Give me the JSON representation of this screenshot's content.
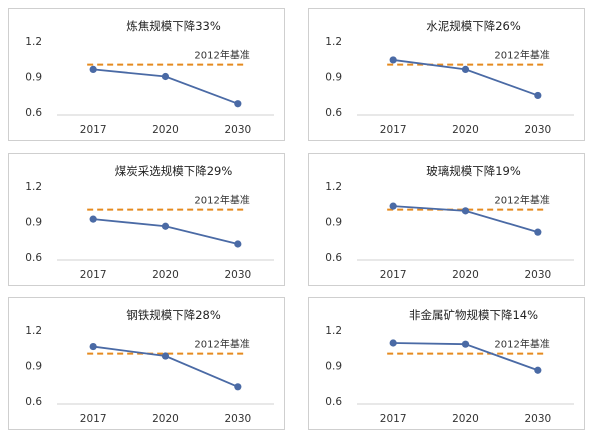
{
  "colors": {
    "series": "#4a6aa5",
    "baseline": "#e58a1f",
    "axis": "#d0d0d0",
    "border": "#cfcfcf"
  },
  "chart_data": [
    {
      "type": "line",
      "title": "炼焦规模下降33%",
      "categories": [
        "2017",
        "2020",
        "2030"
      ],
      "values": [
        0.96,
        0.9,
        0.67
      ],
      "baseline": {
        "label": "2012年基准",
        "value": 1.0
      },
      "yticks": [
        "0.6",
        "0.9",
        "1.2"
      ],
      "ylim": [
        0.6,
        1.2
      ],
      "xlabel": "",
      "ylabel": "",
      "grid": false
    },
    {
      "type": "line",
      "title": "水泥规模下降26%",
      "categories": [
        "2017",
        "2020",
        "2030"
      ],
      "values": [
        1.04,
        0.96,
        0.74
      ],
      "baseline": {
        "label": "2012年基准",
        "value": 1.0
      },
      "yticks": [
        "0.6",
        "0.9",
        "1.2"
      ],
      "ylim": [
        0.6,
        1.2
      ],
      "xlabel": "",
      "ylabel": "",
      "grid": false
    },
    {
      "type": "line",
      "title": "煤炭采选规模下降29%",
      "categories": [
        "2017",
        "2020",
        "2030"
      ],
      "values": [
        0.92,
        0.86,
        0.71
      ],
      "baseline": {
        "label": "2012年基准",
        "value": 1.0
      },
      "yticks": [
        "0.6",
        "0.9",
        "1.2"
      ],
      "ylim": [
        0.6,
        1.2
      ],
      "xlabel": "",
      "ylabel": "",
      "grid": false
    },
    {
      "type": "line",
      "title": "玻璃规模下降19%",
      "categories": [
        "2017",
        "2020",
        "2030"
      ],
      "values": [
        1.03,
        0.99,
        0.81
      ],
      "baseline": {
        "label": "2012年基准",
        "value": 1.0
      },
      "yticks": [
        "0.6",
        "0.9",
        "1.2"
      ],
      "ylim": [
        0.6,
        1.2
      ],
      "xlabel": "",
      "ylabel": "",
      "grid": false
    },
    {
      "type": "line",
      "title": "钢铁规模下降28%",
      "categories": [
        "2017",
        "2020",
        "2030"
      ],
      "values": [
        1.06,
        0.98,
        0.72
      ],
      "baseline": {
        "label": "2012年基准",
        "value": 1.0
      },
      "yticks": [
        "0.6",
        "0.9",
        "1.2"
      ],
      "ylim": [
        0.6,
        1.2
      ],
      "xlabel": "",
      "ylabel": "",
      "grid": false
    },
    {
      "type": "line",
      "title": "非金属矿物规模下降14%",
      "categories": [
        "2017",
        "2020",
        "2030"
      ],
      "values": [
        1.09,
        1.08,
        0.86
      ],
      "baseline": {
        "label": "2012年基准",
        "value": 1.0
      },
      "yticks": [
        "0.6",
        "0.9",
        "1.2"
      ],
      "ylim": [
        0.6,
        1.2
      ],
      "xlabel": "",
      "ylabel": "",
      "grid": false
    }
  ]
}
